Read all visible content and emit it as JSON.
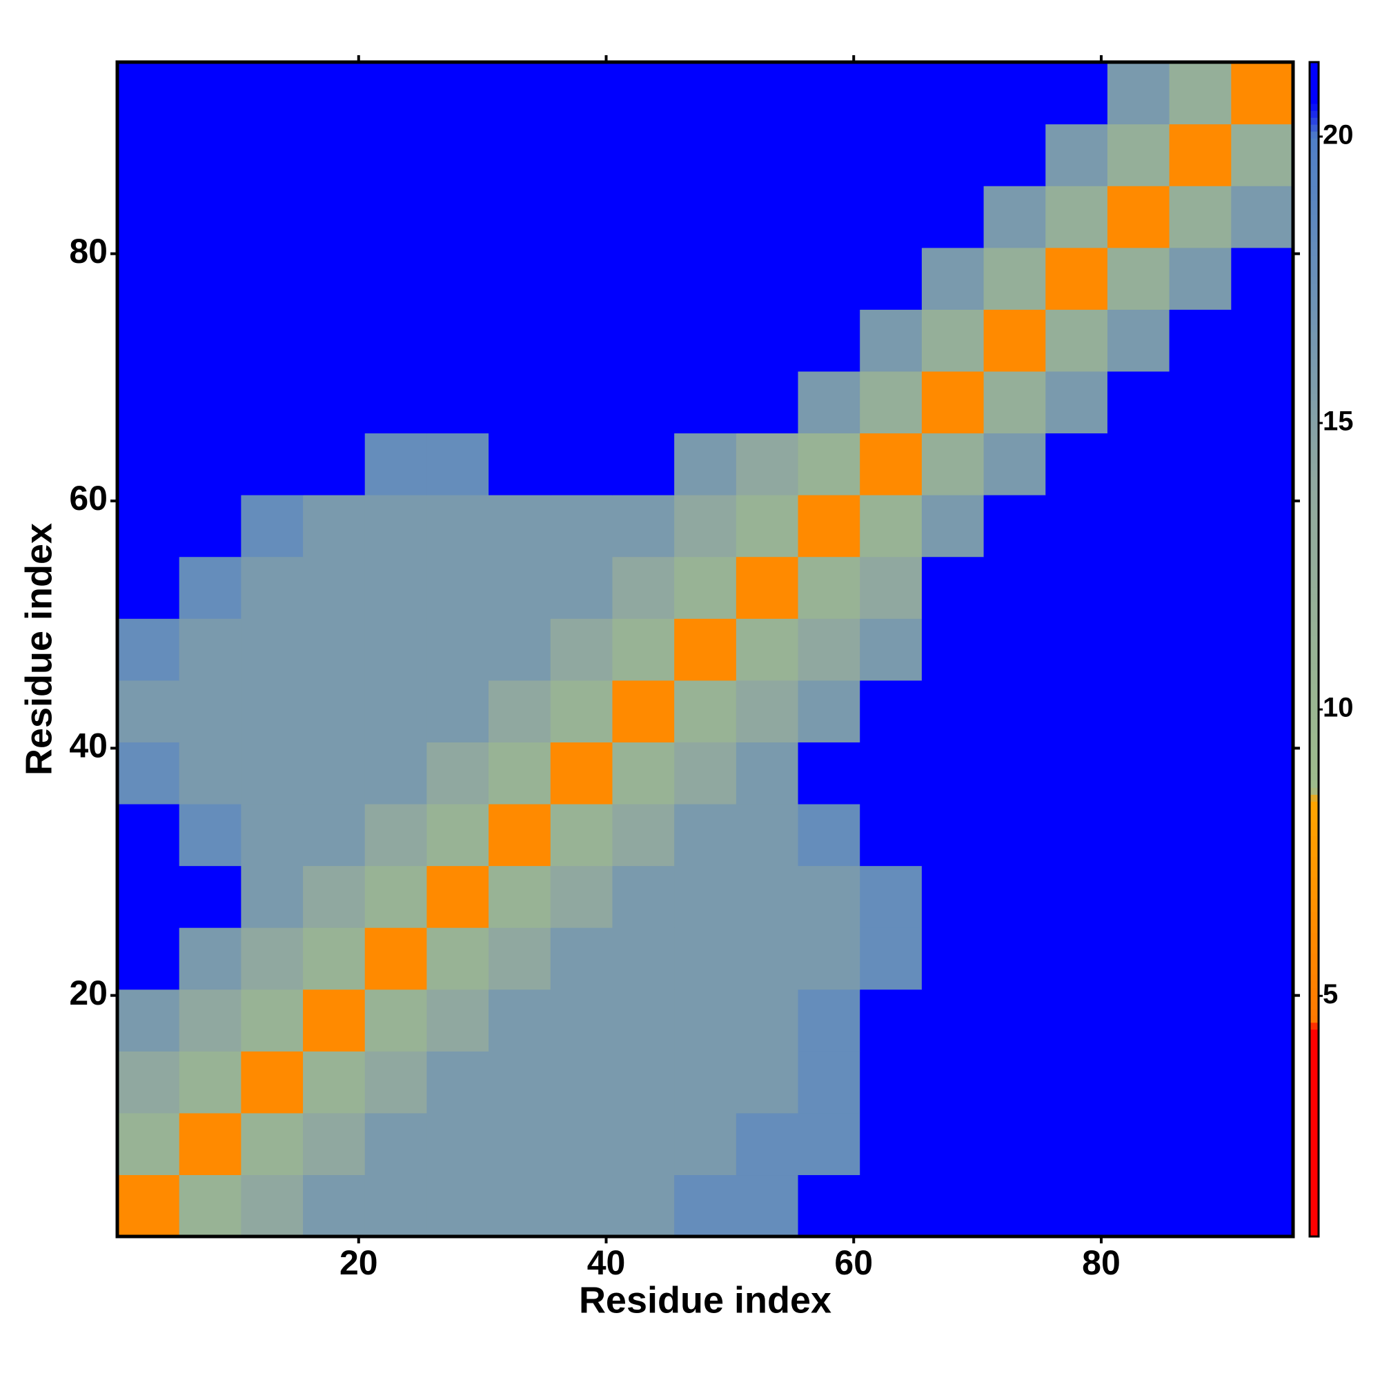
{
  "chart_data": {
    "type": "heatmap",
    "xlabel": "Residue index",
    "ylabel": "Residue index",
    "xbins": [
      0.5,
      5.5,
      10.5,
      15.5,
      20.5,
      25.5,
      30.5,
      35.5,
      40.5,
      45.5,
      50.5,
      55.5,
      60.5,
      65.5,
      70.5,
      75.5,
      80.5,
      85.5,
      90.5,
      95.5
    ],
    "ybins": [
      0.5,
      5.5,
      10.5,
      15.5,
      20.5,
      25.5,
      30.5,
      35.5,
      40.5,
      45.5,
      50.5,
      55.5,
      60.5,
      65.5,
      70.5,
      75.5,
      80.5,
      85.5,
      90.5,
      95.5
    ],
    "values": [
      [
        6,
        11,
        14,
        16,
        16,
        16,
        16,
        16,
        16,
        18,
        18,
        21,
        21,
        21,
        21,
        21,
        21,
        21,
        21
      ],
      [
        11,
        6,
        11,
        14,
        16,
        16,
        16,
        16,
        16,
        16,
        18,
        18,
        21,
        21,
        21,
        21,
        21,
        21,
        21
      ],
      [
        14,
        11,
        6,
        11,
        14,
        16,
        16,
        16,
        16,
        16,
        16,
        18,
        21,
        21,
        21,
        21,
        21,
        21,
        21
      ],
      [
        16,
        14,
        11,
        6,
        11,
        14,
        16,
        16,
        16,
        16,
        16,
        18,
        21,
        21,
        21,
        21,
        21,
        21,
        21
      ],
      [
        21,
        16,
        14,
        11,
        6,
        11,
        14,
        16,
        16,
        16,
        16,
        16,
        18,
        21,
        21,
        21,
        21,
        21,
        21
      ],
      [
        21,
        21,
        16,
        14,
        11,
        6,
        11,
        14,
        16,
        16,
        16,
        16,
        18,
        21,
        21,
        21,
        21,
        21,
        21
      ],
      [
        21,
        18,
        16,
        16,
        14,
        11,
        6,
        11,
        14,
        16,
        16,
        18,
        21,
        21,
        21,
        21,
        21,
        21,
        21
      ],
      [
        18,
        16,
        16,
        16,
        16,
        14,
        11,
        6,
        11,
        14,
        16,
        21,
        21,
        21,
        21,
        21,
        21,
        21,
        21
      ],
      [
        16,
        16,
        16,
        16,
        16,
        16,
        14,
        11,
        6,
        11,
        14,
        16,
        21,
        21,
        21,
        21,
        21,
        21,
        21
      ],
      [
        18,
        16,
        16,
        16,
        16,
        16,
        16,
        14,
        11,
        6,
        11,
        14,
        16,
        21,
        21,
        21,
        21,
        21,
        21
      ],
      [
        21,
        18,
        16,
        16,
        16,
        16,
        16,
        16,
        14,
        11,
        6,
        11,
        14,
        21,
        21,
        21,
        21,
        21,
        21
      ],
      [
        21,
        21,
        18,
        16,
        16,
        16,
        16,
        16,
        16,
        14,
        11,
        6,
        11,
        16,
        21,
        21,
        21,
        21,
        21
      ],
      [
        21,
        21,
        21,
        21,
        18,
        18,
        21,
        21,
        21,
        16,
        14,
        11,
        6,
        12,
        16,
        21,
        21,
        21,
        21
      ],
      [
        21,
        21,
        21,
        21,
        21,
        21,
        21,
        21,
        21,
        21,
        21,
        16,
        12,
        6,
        12,
        16,
        21,
        21,
        21
      ],
      [
        21,
        21,
        21,
        21,
        21,
        21,
        21,
        21,
        21,
        21,
        21,
        21,
        16,
        12,
        6,
        12,
        16,
        21,
        21
      ],
      [
        21,
        21,
        21,
        21,
        21,
        21,
        21,
        21,
        21,
        21,
        21,
        21,
        21,
        16,
        12,
        6,
        12,
        16,
        21
      ],
      [
        21,
        21,
        21,
        21,
        21,
        21,
        21,
        21,
        21,
        21,
        21,
        21,
        21,
        21,
        16,
        12,
        6,
        12,
        16
      ],
      [
        21,
        21,
        21,
        21,
        21,
        21,
        21,
        21,
        21,
        21,
        21,
        21,
        21,
        21,
        21,
        16,
        12,
        6,
        12
      ],
      [
        21,
        21,
        21,
        21,
        21,
        21,
        21,
        21,
        21,
        21,
        21,
        21,
        21,
        21,
        21,
        21,
        16,
        12,
        6
      ]
    ],
    "xlim": [
      0.5,
      95.5
    ],
    "ylim": [
      0.5,
      95.5
    ],
    "xticks": [
      20,
      40,
      60,
      80
    ],
    "yticks": [
      20,
      40,
      60,
      80
    ],
    "clim": [
      0.8,
      21.3
    ],
    "cticks": [
      5,
      10,
      15,
      20
    ],
    "colorscale": [
      [
        0.8,
        "#ff0000"
      ],
      [
        4.4,
        "#ff0000"
      ],
      [
        4.6,
        "#ff7a00"
      ],
      [
        8.4,
        "#ffa500"
      ],
      [
        8.6,
        "#9ebb8c"
      ],
      [
        14,
        "#90a8a0"
      ],
      [
        20,
        "#4f7fc8"
      ],
      [
        20.6,
        "#0000ff"
      ],
      [
        21.3,
        "#0000ff"
      ]
    ]
  }
}
